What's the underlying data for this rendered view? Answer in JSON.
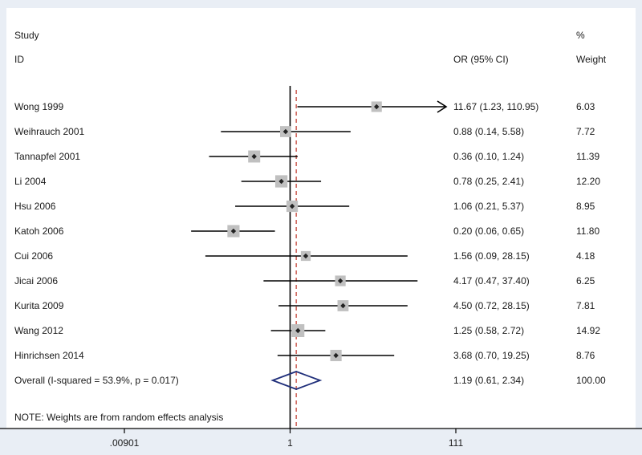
{
  "chart_data": {
    "type": "forest",
    "headers": {
      "study_line1": "Study",
      "study_line2": "ID",
      "or": "OR (95% CI)",
      "weight_line1": "%",
      "weight_line2": "Weight"
    },
    "studies": [
      {
        "label": "Wong 1999",
        "or": 11.67,
        "lo": 1.23,
        "hi": 110.95,
        "ci_text": "11.67 (1.23, 110.95)",
        "weight": 6.03,
        "weight_text": "6.03",
        "truncated_hi": true
      },
      {
        "label": "Weihrauch 2001",
        "or": 0.88,
        "lo": 0.14,
        "hi": 5.58,
        "ci_text": "0.88 (0.14, 5.58)",
        "weight": 7.72,
        "weight_text": "7.72"
      },
      {
        "label": "Tannapfel 2001",
        "or": 0.36,
        "lo": 0.1,
        "hi": 1.24,
        "ci_text": "0.36 (0.10, 1.24)",
        "weight": 11.39,
        "weight_text": "11.39"
      },
      {
        "label": "Li 2004",
        "or": 0.78,
        "lo": 0.25,
        "hi": 2.41,
        "ci_text": "0.78 (0.25, 2.41)",
        "weight": 12.2,
        "weight_text": "12.20"
      },
      {
        "label": "Hsu 2006",
        "or": 1.06,
        "lo": 0.21,
        "hi": 5.37,
        "ci_text": "1.06 (0.21, 5.37)",
        "weight": 8.95,
        "weight_text": "8.95"
      },
      {
        "label": "Katoh 2006",
        "or": 0.2,
        "lo": 0.06,
        "hi": 0.65,
        "ci_text": "0.20 (0.06, 0.65)",
        "weight": 11.8,
        "weight_text": "11.80"
      },
      {
        "label": "Cui 2006",
        "or": 1.56,
        "lo": 0.09,
        "hi": 28.15,
        "ci_text": "1.56 (0.09, 28.15)",
        "weight": 4.18,
        "weight_text": "4.18"
      },
      {
        "label": "Jicai 2006",
        "or": 4.17,
        "lo": 0.47,
        "hi": 37.4,
        "ci_text": "4.17 (0.47, 37.40)",
        "weight": 6.25,
        "weight_text": "6.25"
      },
      {
        "label": "Kurita 2009",
        "or": 4.5,
        "lo": 0.72,
        "hi": 28.15,
        "ci_text": "4.50 (0.72, 28.15)",
        "weight": 7.81,
        "weight_text": "7.81"
      },
      {
        "label": "Wang 2012",
        "or": 1.25,
        "lo": 0.58,
        "hi": 2.72,
        "ci_text": "1.25 (0.58, 2.72)",
        "weight": 14.92,
        "weight_text": "14.92"
      },
      {
        "label": "Hinrichsen 2014",
        "or": 3.68,
        "lo": 0.7,
        "hi": 19.25,
        "ci_text": "3.68 (0.70, 19.25)",
        "weight": 8.76,
        "weight_text": "8.76"
      }
    ],
    "overall": {
      "label": "Overall  (I-squared = 53.9%, p = 0.017)",
      "or": 1.19,
      "lo": 0.61,
      "hi": 2.34,
      "ci_text": "1.19 (0.61, 2.34)",
      "weight_text": "100.00"
    },
    "note": "NOTE: Weights are from random effects analysis",
    "x_scale": "log",
    "xlim": [
      0.00901,
      111
    ],
    "x_ticks": [
      {
        "value": 0.00901,
        "label": ".00901"
      },
      {
        "value": 1,
        "label": "1"
      },
      {
        "value": 111,
        "label": "111"
      }
    ],
    "null_line": 1,
    "colors": {
      "page_background": "#e9eef5",
      "panel_background": "#ffffff",
      "ci_line": "#000000",
      "box": "#c0c0c0",
      "point": "#222222",
      "diamond": "#1f2e7a",
      "overall_line": "#c0392b"
    }
  }
}
